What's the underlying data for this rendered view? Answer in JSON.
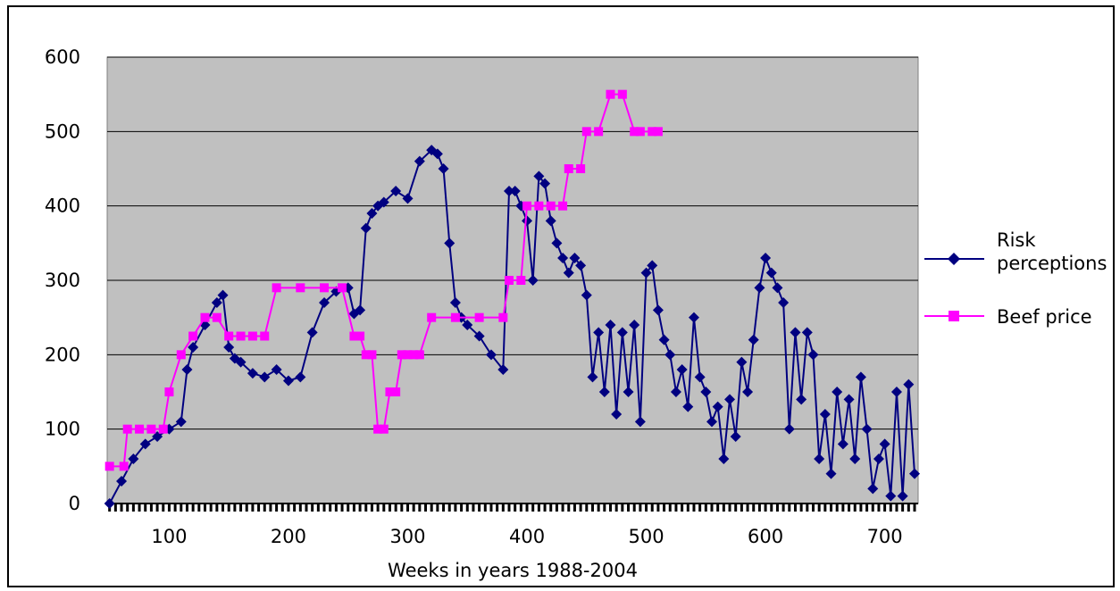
{
  "chart_data": {
    "type": "line",
    "title": "",
    "xlabel": "Weeks in years 1988-2004",
    "ylabel": "",
    "xlim": [
      48,
      728
    ],
    "ylim": [
      0,
      600
    ],
    "x_ticks": [
      100,
      200,
      300,
      400,
      500,
      600,
      700
    ],
    "y_ticks": [
      0,
      100,
      200,
      300,
      400,
      500,
      600
    ],
    "grid": "horizontal",
    "legend_position": "right",
    "plot_background": "#c0c0c0",
    "series": [
      {
        "name": "Risk perceptions",
        "color": "#000080",
        "marker": "diamond",
        "x": [
          50,
          60,
          70,
          80,
          90,
          100,
          110,
          115,
          120,
          130,
          140,
          145,
          150,
          155,
          160,
          170,
          180,
          190,
          200,
          210,
          220,
          230,
          240,
          250,
          255,
          260,
          265,
          270,
          275,
          280,
          290,
          300,
          310,
          320,
          325,
          330,
          335,
          340,
          345,
          350,
          360,
          370,
          380,
          385,
          390,
          395,
          400,
          405,
          410,
          415,
          420,
          425,
          430,
          435,
          440,
          445,
          450,
          455,
          460,
          465,
          470,
          475,
          480,
          485,
          490,
          495,
          500,
          505,
          510,
          515,
          520,
          525,
          530,
          535,
          540,
          545,
          550,
          555,
          560,
          565,
          570,
          575,
          580,
          585,
          590,
          595,
          600,
          605,
          610,
          615,
          620,
          625,
          630,
          635,
          640,
          645,
          650,
          655,
          660,
          665,
          670,
          675,
          680,
          685,
          690,
          695,
          700,
          705,
          710,
          715,
          720,
          725
        ],
        "y": [
          0,
          30,
          60,
          80,
          90,
          100,
          110,
          180,
          210,
          240,
          270,
          280,
          210,
          195,
          190,
          175,
          170,
          180,
          165,
          170,
          230,
          270,
          285,
          290,
          255,
          260,
          370,
          390,
          400,
          405,
          420,
          410,
          460,
          475,
          470,
          450,
          350,
          270,
          250,
          240,
          225,
          200,
          180,
          420,
          420,
          400,
          380,
          300,
          440,
          430,
          380,
          350,
          330,
          310,
          330,
          320,
          280,
          170,
          230,
          150,
          240,
          120,
          230,
          150,
          240,
          110,
          310,
          320,
          260,
          220,
          200,
          150,
          180,
          130,
          250,
          170,
          150,
          110,
          130,
          60,
          140,
          90,
          190,
          150,
          220,
          290,
          330,
          310,
          290,
          270,
          100,
          230,
          140,
          230,
          200,
          60,
          120,
          40,
          150,
          80,
          140,
          60,
          170,
          100,
          20,
          60,
          80,
          10,
          150,
          10,
          160,
          40
        ]
      },
      {
        "name": "Beef price",
        "color": "#ff00ff",
        "marker": "square",
        "x": [
          50,
          62,
          65,
          75,
          85,
          95,
          100,
          110,
          120,
          130,
          140,
          150,
          160,
          170,
          180,
          190,
          210,
          230,
          245,
          255,
          260,
          265,
          270,
          275,
          280,
          285,
          290,
          295,
          300,
          305,
          310,
          320,
          340,
          360,
          380,
          385,
          395,
          400,
          410,
          420,
          430,
          435,
          445,
          450,
          460,
          470,
          480,
          490,
          495,
          505,
          510
        ],
        "y": [
          50,
          50,
          100,
          100,
          100,
          100,
          150,
          200,
          225,
          250,
          250,
          225,
          225,
          225,
          225,
          290,
          290,
          290,
          290,
          225,
          225,
          200,
          200,
          100,
          100,
          150,
          150,
          200,
          200,
          200,
          200,
          250,
          250,
          250,
          250,
          300,
          300,
          400,
          400,
          400,
          400,
          450,
          450,
          500,
          500,
          550,
          550,
          500,
          500,
          500,
          500
        ]
      }
    ]
  }
}
